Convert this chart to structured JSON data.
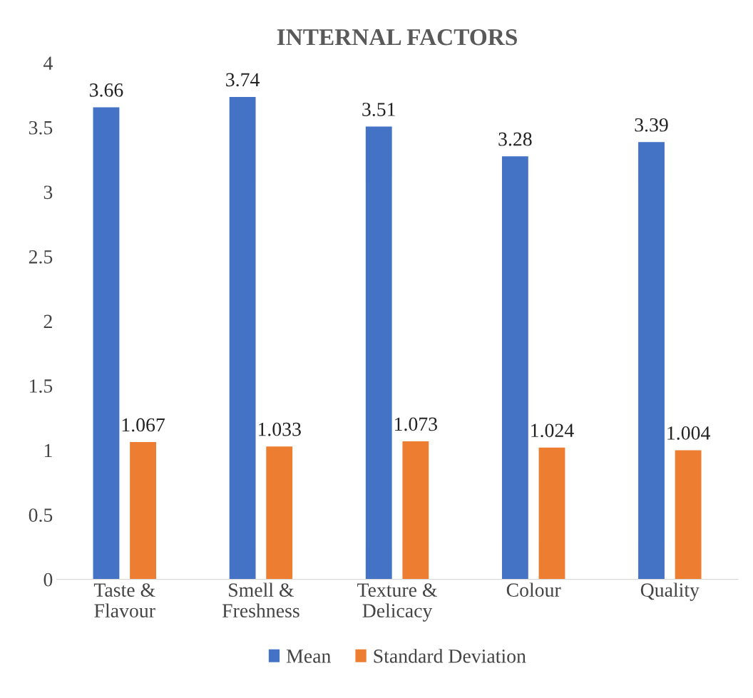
{
  "chart_data": {
    "type": "bar",
    "title": "INTERNAL FACTORS",
    "categories": [
      "Taste &\nFlavour",
      "Smell &\nFreshness",
      "Texture &\nDelicacy",
      "Colour",
      "Quality"
    ],
    "series": [
      {
        "name": "Mean",
        "color": "#4472c4",
        "values": [
          3.66,
          3.74,
          3.51,
          3.28,
          3.39
        ]
      },
      {
        "name": "Standard Deviation",
        "color": "#ed7d31",
        "values": [
          1.067,
          1.033,
          1.073,
          1.024,
          1.004
        ]
      }
    ],
    "ylim": [
      0,
      4
    ],
    "yticks": [
      0,
      0.5,
      1,
      1.5,
      2,
      2.5,
      3,
      3.5,
      4
    ],
    "grid": false,
    "legend": "bottom",
    "data_labels": true
  }
}
